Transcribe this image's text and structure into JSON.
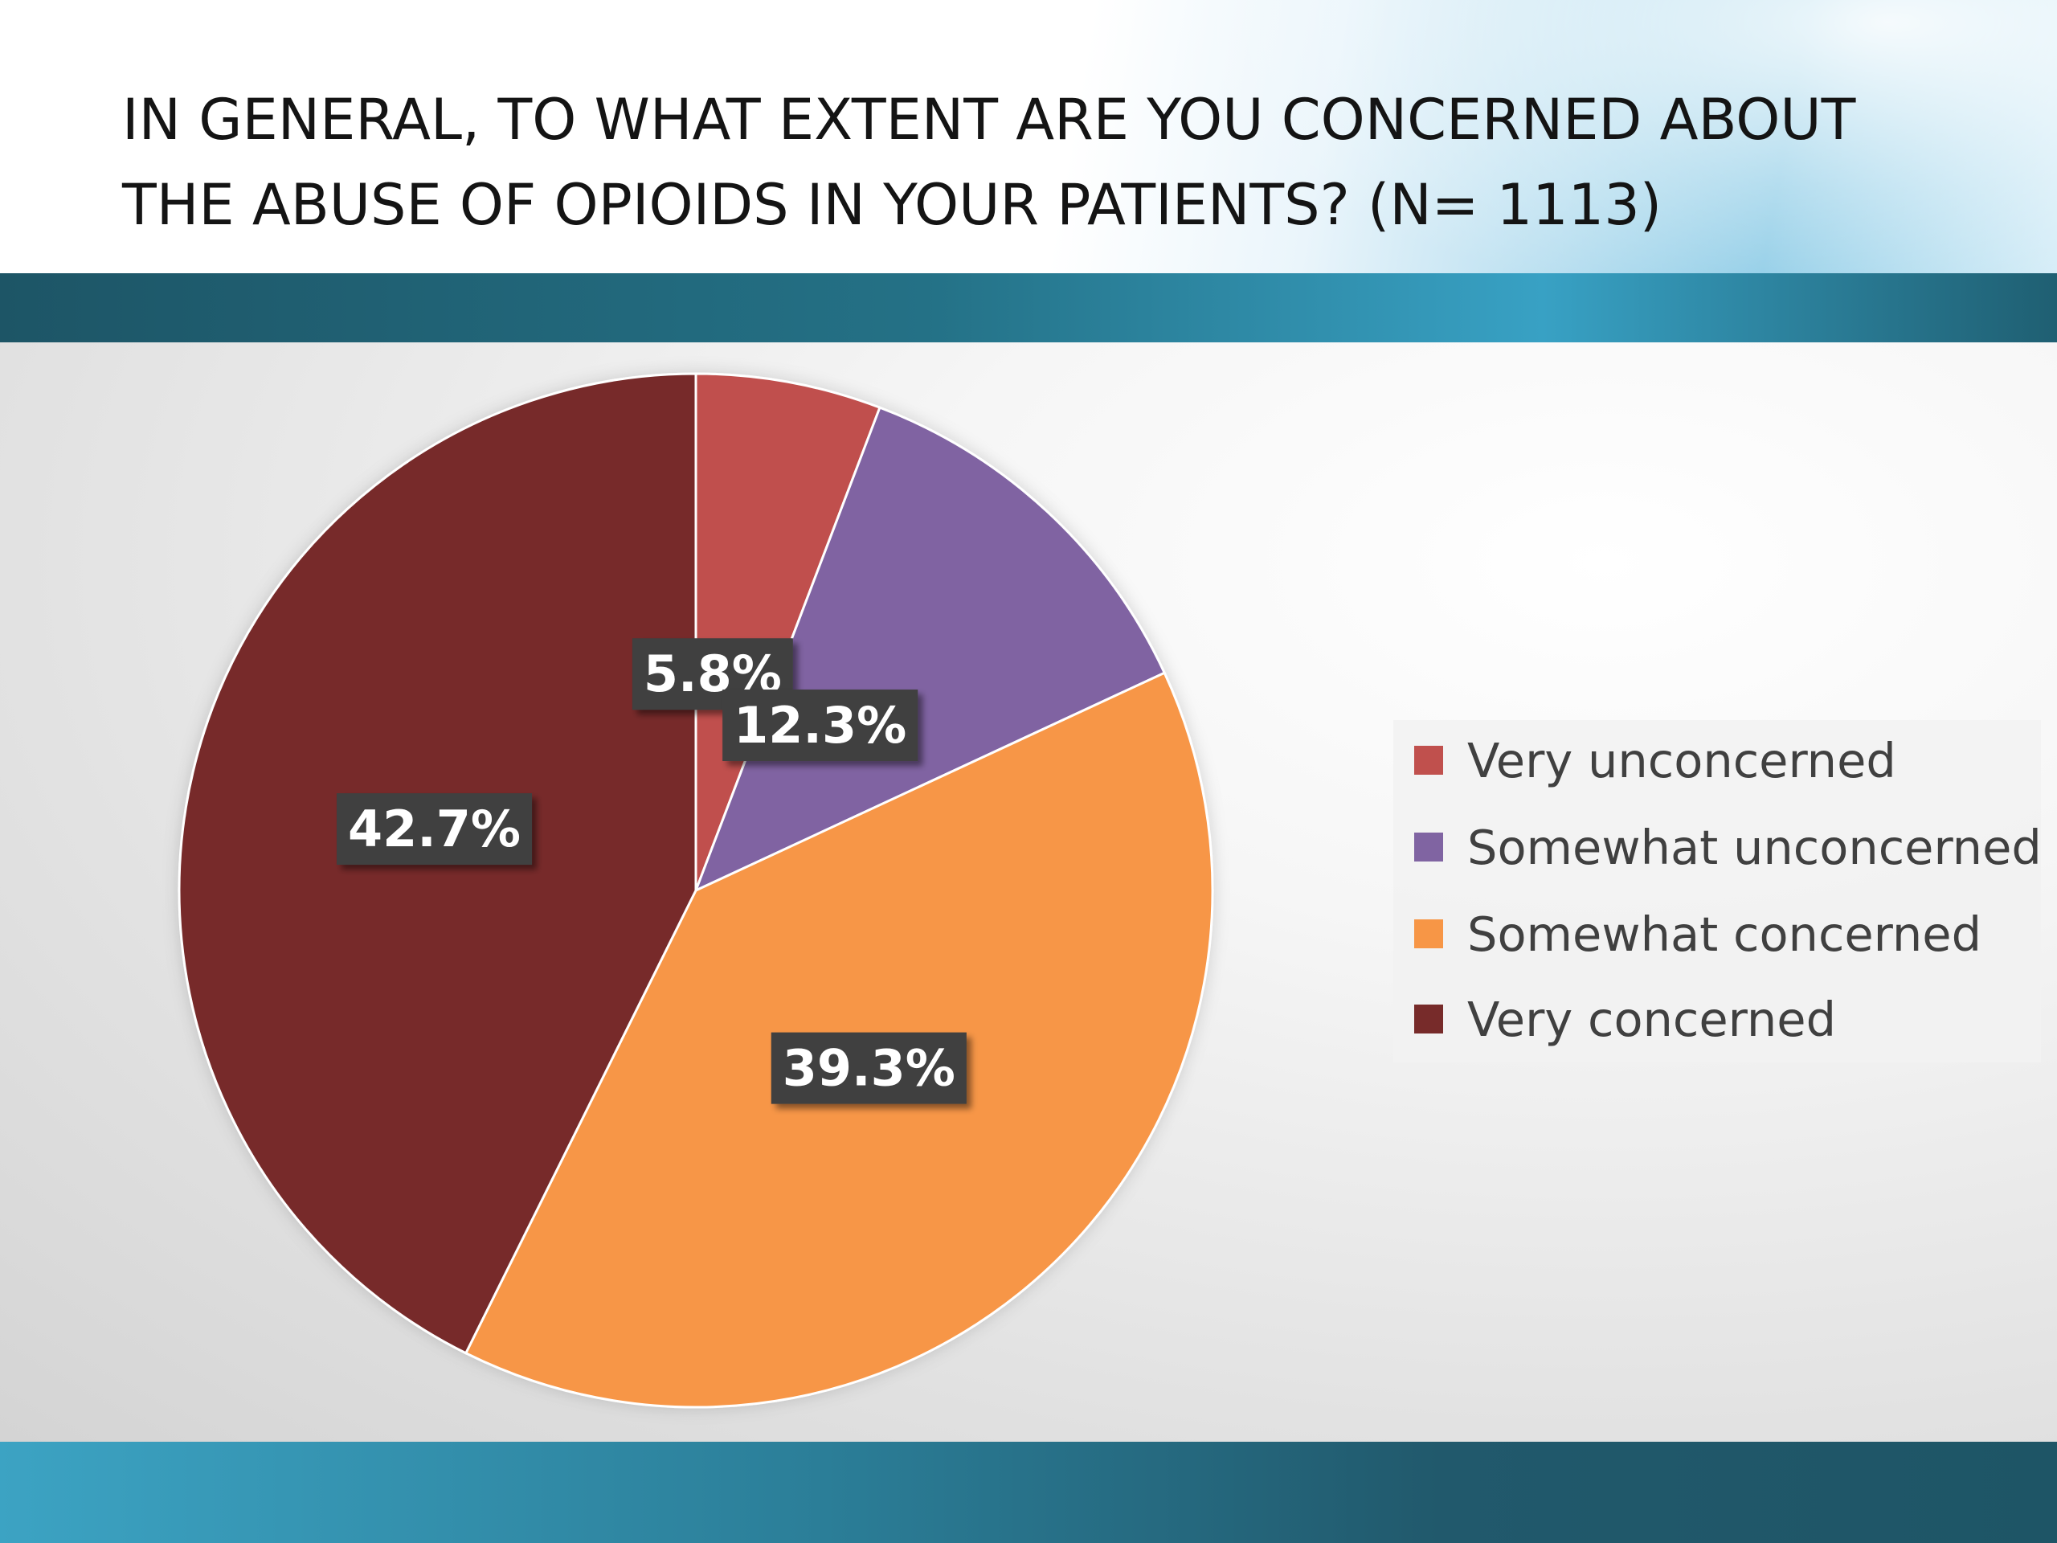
{
  "slide": {
    "title_line1": "IN GENERAL, TO WHAT EXTENT ARE YOU CONCERNED ABOUT",
    "title_line2": "THE ABUSE OF OPIOIDS IN YOUR PATIENTS? (N= 1113)"
  },
  "chart_data": {
    "type": "pie",
    "categories": [
      "Very unconcerned",
      "Somewhat unconcerned",
      "Somewhat concerned",
      "Very concerned"
    ],
    "values": [
      5.8,
      12.3,
      39.3,
      42.7
    ],
    "data_labels": [
      "5.8%",
      "12.3%",
      "39.3%",
      "42.7%"
    ],
    "colors": [
      "#c0504d",
      "#8064a2",
      "#f79646",
      "#772b2a"
    ],
    "start_angle": "12 o'clock",
    "direction": "clockwise",
    "legend": "right"
  }
}
